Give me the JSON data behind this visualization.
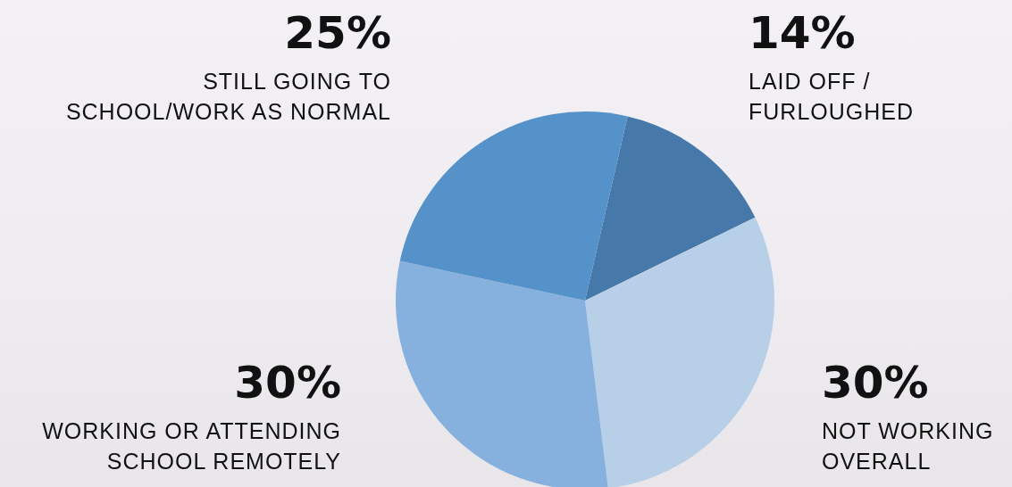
{
  "chart_data": {
    "type": "pie",
    "categories": [
      "LAID OFF / FURLOUGHED",
      "NOT WORKING OVERALL",
      "WORKING OR ATTENDING SCHOOL REMOTELY",
      "STILL GOING TO SCHOOL/WORK AS NORMAL"
    ],
    "values": [
      14,
      30,
      30,
      25
    ],
    "colors": [
      "#4679aa",
      "#b8cfe8",
      "#86b0dd",
      "#5592c9"
    ],
    "value_labels": [
      "14%",
      "30%",
      "30%",
      "25%"
    ],
    "legend": false
  }
}
